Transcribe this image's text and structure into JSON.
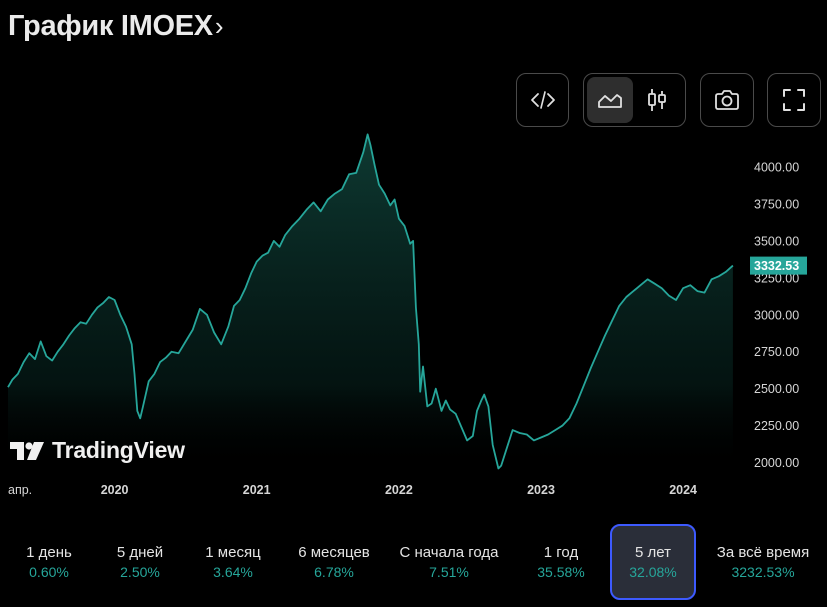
{
  "header": {
    "title": "График IMOEX"
  },
  "toolbar": {
    "embed_icon": "code-icon",
    "area_icon": "area-chart-icon",
    "candle_icon": "candlestick-icon",
    "snapshot_icon": "camera-icon",
    "fullscreen_icon": "fullscreen-icon"
  },
  "watermark": {
    "text": "TradingView"
  },
  "colors": {
    "line": "#26a69a",
    "fill_top": "#0f3d35",
    "accent": "#3d5afe",
    "background": "#000000"
  },
  "chart_data": {
    "type": "area",
    "title": "",
    "xlabel": "",
    "ylabel": "",
    "y_axis_position": "right",
    "grid": false,
    "ylim": [
      1950,
      4250
    ],
    "xlim": [
      2019.25,
      2024.4
    ],
    "x_tick_labels": [
      "апр.",
      "2020",
      "2021",
      "2022",
      "2023",
      "2024"
    ],
    "x_ticks": [
      2019.25,
      2020.0,
      2021.0,
      2022.0,
      2023.0,
      2024.0
    ],
    "y_ticks": [
      2000,
      2250,
      2500,
      2750,
      3000,
      3250,
      3500,
      3750,
      4000
    ],
    "y_tick_labels": [
      "2000.00",
      "2250.00",
      "2500.00",
      "2750.00",
      "3000.00",
      "3250.00",
      "3500.00",
      "3750.00",
      "4000.00"
    ],
    "last_value": 3332.53,
    "last_value_label": "3332.53",
    "series": [
      {
        "x": [
          2019.25,
          2019.28,
          2019.32,
          2019.36,
          2019.4,
          2019.44,
          2019.48,
          2019.52,
          2019.56,
          2019.6,
          2019.64,
          2019.68,
          2019.72,
          2019.76,
          2019.8,
          2019.84,
          2019.88,
          2019.92,
          2019.96,
          2020.0,
          2020.04,
          2020.08,
          2020.12,
          2020.14,
          2020.16,
          2020.18,
          2020.2,
          2020.24,
          2020.28,
          2020.32,
          2020.36,
          2020.4,
          2020.45,
          2020.5,
          2020.55,
          2020.6,
          2020.65,
          2020.7,
          2020.75,
          2020.8,
          2020.84,
          2020.88,
          2020.92,
          2020.96,
          2021.0,
          2021.04,
          2021.08,
          2021.12,
          2021.16,
          2021.2,
          2021.25,
          2021.3,
          2021.35,
          2021.4,
          2021.45,
          2021.5,
          2021.55,
          2021.6,
          2021.65,
          2021.7,
          2021.75,
          2021.78,
          2021.8,
          2021.83,
          2021.86,
          2021.9,
          2021.94,
          2021.97,
          2022.0,
          2022.04,
          2022.08,
          2022.1,
          2022.12,
          2022.14,
          2022.15,
          2022.17,
          2022.2,
          2022.23,
          2022.26,
          2022.3,
          2022.33,
          2022.36,
          2022.4,
          2022.44,
          2022.48,
          2022.52,
          2022.55,
          2022.58,
          2022.6,
          2022.63,
          2022.66,
          2022.7,
          2022.72,
          2022.76,
          2022.8,
          2022.85,
          2022.9,
          2022.95,
          2023.0,
          2023.05,
          2023.1,
          2023.15,
          2023.2,
          2023.25,
          2023.3,
          2023.35,
          2023.4,
          2023.45,
          2023.5,
          2023.55,
          2023.6,
          2023.65,
          2023.7,
          2023.75,
          2023.8,
          2023.85,
          2023.9,
          2023.95,
          2024.0,
          2024.05,
          2024.1,
          2024.15,
          2024.2,
          2024.25,
          2024.3,
          2024.35
        ],
        "values": [
          2510,
          2560,
          2600,
          2680,
          2740,
          2700,
          2820,
          2720,
          2690,
          2750,
          2800,
          2860,
          2910,
          2950,
          2940,
          3000,
          3050,
          3080,
          3120,
          3100,
          3000,
          2920,
          2800,
          2600,
          2350,
          2300,
          2380,
          2550,
          2600,
          2680,
          2710,
          2750,
          2740,
          2820,
          2900,
          3040,
          3000,
          2880,
          2800,
          2920,
          3060,
          3100,
          3180,
          3280,
          3360,
          3400,
          3420,
          3500,
          3460,
          3540,
          3600,
          3650,
          3710,
          3760,
          3700,
          3780,
          3820,
          3850,
          3950,
          3960,
          4100,
          4220,
          4150,
          4010,
          3880,
          3820,
          3740,
          3780,
          3650,
          3600,
          3480,
          3500,
          3050,
          2800,
          2480,
          2650,
          2380,
          2400,
          2500,
          2350,
          2420,
          2360,
          2330,
          2240,
          2150,
          2180,
          2350,
          2420,
          2460,
          2380,
          2120,
          1960,
          1980,
          2100,
          2220,
          2200,
          2190,
          2150,
          2170,
          2190,
          2220,
          2250,
          2300,
          2400,
          2520,
          2640,
          2750,
          2860,
          2960,
          3060,
          3120,
          3160,
          3200,
          3240,
          3210,
          3180,
          3130,
          3100,
          3180,
          3200,
          3160,
          3150,
          3240,
          3260,
          3290,
          3332.53
        ]
      }
    ]
  },
  "periods": [
    {
      "label": "1 день",
      "value": "0.60%"
    },
    {
      "label": "5 дней",
      "value": "2.50%"
    },
    {
      "label": "1 месяц",
      "value": "3.64%"
    },
    {
      "label": "6 месяцев",
      "value": "6.78%"
    },
    {
      "label": "С начала года",
      "value": "7.51%"
    },
    {
      "label": "1 год",
      "value": "35.58%"
    },
    {
      "label": "5 лет",
      "value": "32.08%",
      "active": true
    },
    {
      "label": "За всё время",
      "value": "3232.53%"
    }
  ]
}
